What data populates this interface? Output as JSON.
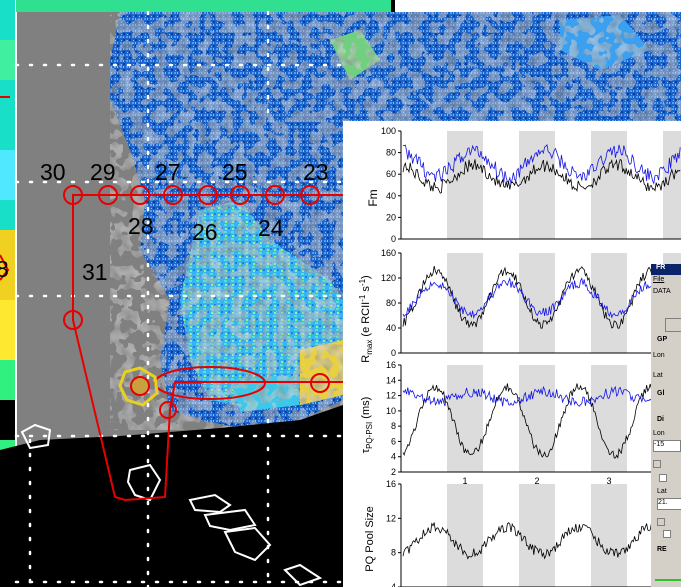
{
  "map": {
    "station_labels_top": [
      "30",
      "29",
      "27",
      "25",
      "23"
    ],
    "station_labels_bottom": [
      "28",
      "26",
      "24"
    ],
    "station_label_side": "31",
    "edge_fragment_left": "8",
    "edge_fragment_bottom_1": "1",
    "edge_fragment_bottom_2": "f",
    "colors": {
      "track": "#e60000",
      "grid_dot": "#ffffff",
      "land": "#000000",
      "fill": "#808080",
      "highlight": "#e0d020"
    }
  },
  "charts": {
    "x_tick_labels": [
      "1",
      "2",
      "3"
    ],
    "shade_color": "#dcdcdc",
    "series_colors": {
      "primary": "#000000",
      "secondary": "#1414e6"
    },
    "panels": [
      {
        "ylabel": "Fm",
        "yticks": [
          "100",
          "80",
          "60",
          "40",
          "20",
          "0"
        ]
      },
      {
        "ylabel_main": "R",
        "ylabel_sub": "max",
        "ylabel_rest": " (e RCII",
        "ylabel_sup": "-1",
        "ylabel_s": " s",
        "ylabel_sup2": "-1",
        "ylabel_close": ")",
        "yticks": [
          "160",
          "120",
          "80",
          "40",
          "0"
        ]
      },
      {
        "ylabel_main": "τ",
        "ylabel_sub": "PQ-PSI",
        "ylabel_rest": " (ms)",
        "yticks": [
          "16",
          "14",
          "12",
          "10",
          "8",
          "6",
          "4",
          "2"
        ]
      },
      {
        "ylabel": "PQ Pool Size",
        "yticks": [
          "16",
          "12",
          "8",
          "4"
        ]
      }
    ]
  },
  "window": {
    "title": "FR",
    "menu_file": "File",
    "tab": "DATA",
    "section1": "GP",
    "lon_label": "Lon",
    "lat_label": "Lat",
    "section2": "Gl",
    "section3": "Di",
    "lon_label2": "Lon",
    "lon_value": "-15",
    "lat_label2": "Lat",
    "lat_value": "21.",
    "button_re": "RE"
  }
}
